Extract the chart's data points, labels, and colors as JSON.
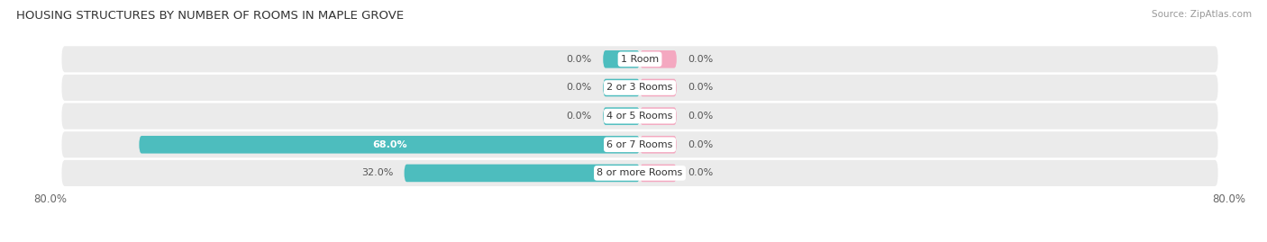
{
  "title": "HOUSING STRUCTURES BY NUMBER OF ROOMS IN MAPLE GROVE",
  "source": "Source: ZipAtlas.com",
  "categories": [
    "1 Room",
    "2 or 3 Rooms",
    "4 or 5 Rooms",
    "6 or 7 Rooms",
    "8 or more Rooms"
  ],
  "owner_values": [
    0.0,
    0.0,
    0.0,
    68.0,
    32.0
  ],
  "renter_values": [
    0.0,
    0.0,
    0.0,
    0.0,
    0.0
  ],
  "owner_color": "#4DBDBE",
  "renter_color": "#F4A8C0",
  "row_bg_color": "#EBEBEB",
  "xlim_left": -80,
  "xlim_right": 80,
  "min_bar_width": 5.0,
  "bar_height": 0.62,
  "figsize": [
    14.06,
    2.69
  ],
  "dpi": 100
}
